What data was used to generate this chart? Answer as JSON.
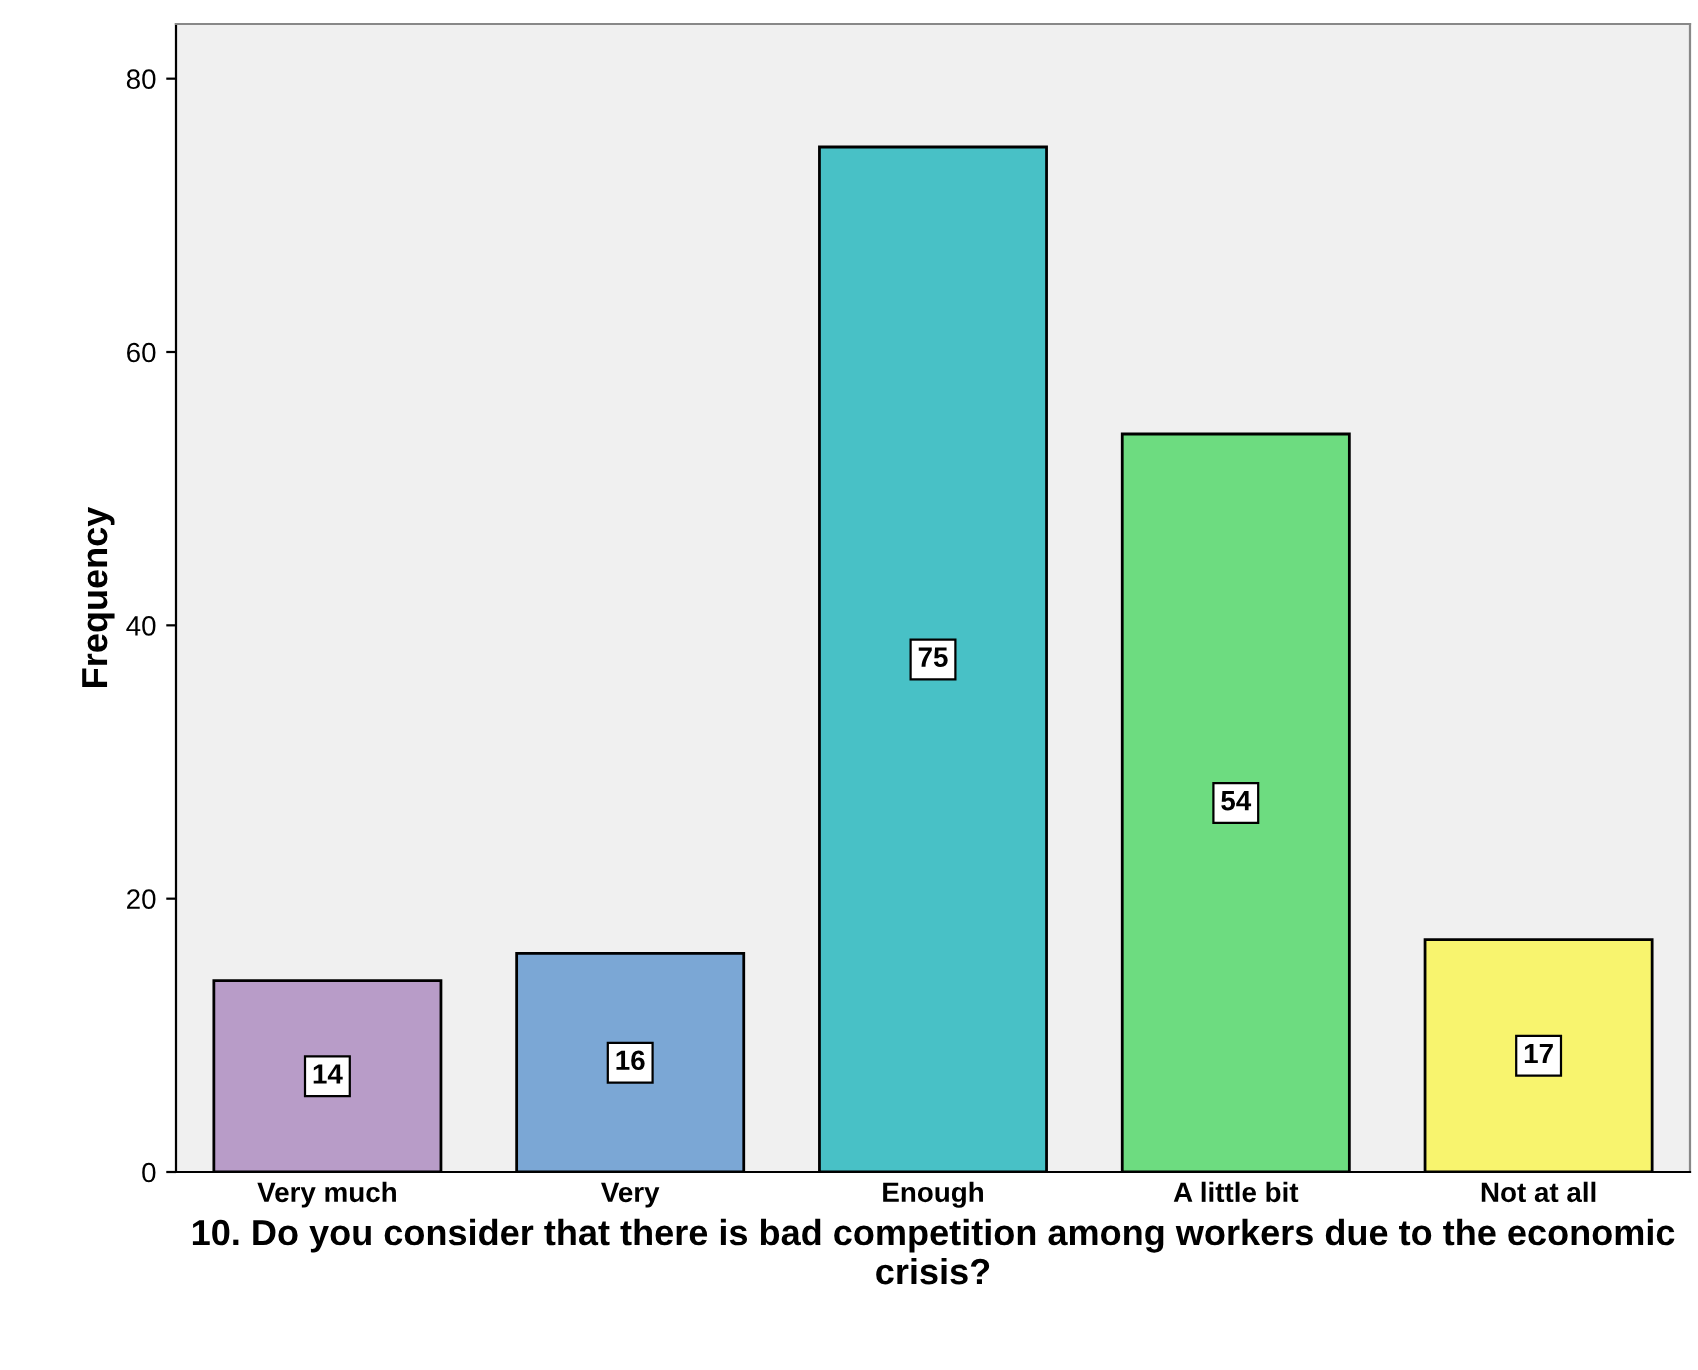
{
  "chart_data": {
    "type": "bar",
    "xlabel": "10. Do you consider that there is bad competition among workers due to the economic crisis?",
    "ylabel": "Frequency",
    "categories": [
      "Very much",
      "Very",
      "Enough",
      "A little bit",
      "Not at all"
    ],
    "values": [
      14,
      16,
      75,
      54,
      17
    ],
    "colors": [
      "#b89cc8",
      "#7ba7d5",
      "#48c1c6",
      "#6ddc80",
      "#f8f46e"
    ],
    "ylim": [
      0,
      84
    ],
    "yticks": [
      0,
      20,
      40,
      60,
      80
    ],
    "data_labels": true,
    "grid": false,
    "legend": false
  }
}
